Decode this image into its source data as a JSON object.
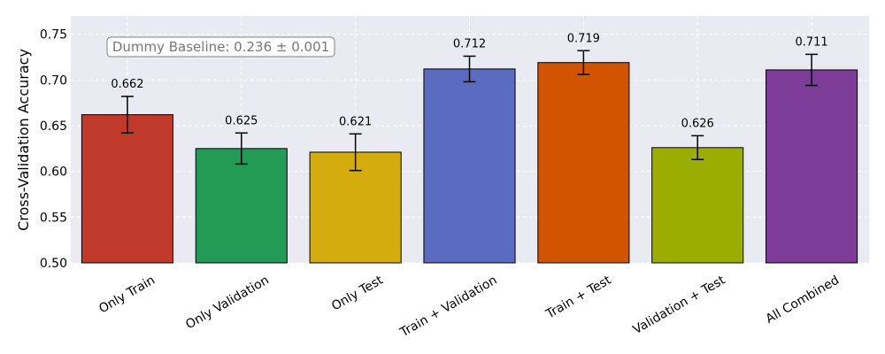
{
  "chart_data": {
    "type": "bar",
    "ylabel": "Cross-Validation Accuracy",
    "xlabel": "",
    "ylim": [
      0.5,
      0.77
    ],
    "yticks": [
      0.5,
      0.55,
      0.6,
      0.65,
      0.7,
      0.75
    ],
    "ytick_labels": [
      "0.50",
      "0.55",
      "0.60",
      "0.65",
      "0.70",
      "0.75"
    ],
    "grid": true,
    "categories": [
      "Only Train",
      "Only Validation",
      "Only Test",
      "Train + Validation",
      "Train + Test",
      "Validation + Test",
      "All Combined"
    ],
    "values": [
      0.662,
      0.625,
      0.621,
      0.712,
      0.719,
      0.626,
      0.711
    ],
    "value_labels": [
      "0.662",
      "0.625",
      "0.621",
      "0.712",
      "0.719",
      "0.626",
      "0.711"
    ],
    "errors": [
      0.02,
      0.017,
      0.02,
      0.014,
      0.013,
      0.013,
      0.017
    ],
    "colors": [
      "#c0392b",
      "#239a55",
      "#d4ac0d",
      "#5b6bc0",
      "#d35400",
      "#9aad00",
      "#7d3c98"
    ],
    "annotation": "Dummy Baseline: 0.236 ± 0.001"
  }
}
